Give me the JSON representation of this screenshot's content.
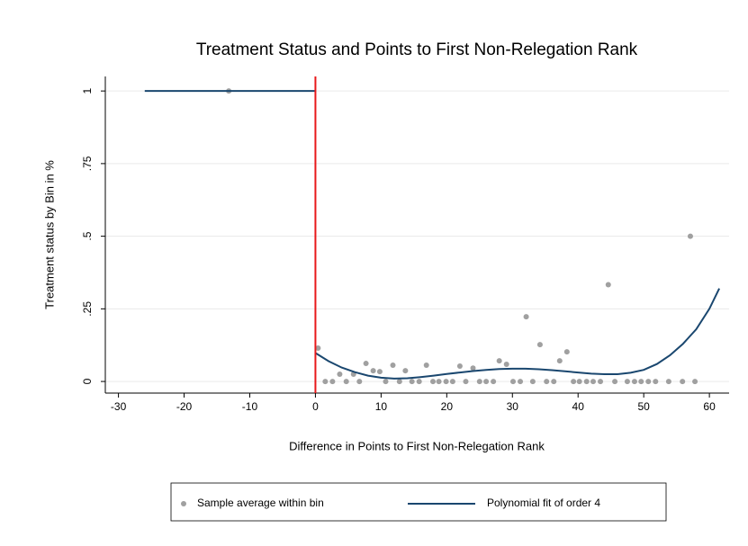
{
  "chart_data": {
    "type": "scatter-fit",
    "title": "Treatment Status and Points to First Non-Relegation Rank",
    "x_label": "Difference in Points to First Non-Relegation Rank",
    "y_label": "Treatment status by Bin in %",
    "xlim": [
      -32,
      63
    ],
    "xticks": [
      -30,
      -20,
      -10,
      0,
      10,
      20,
      30,
      40,
      50,
      60
    ],
    "ylim": [
      -0.04,
      1.05
    ],
    "yticks": [
      0,
      {
        "value": 0.25,
        "label": ".25"
      },
      {
        "value": 0.5,
        "label": ".5"
      },
      {
        "value": 0.75,
        "label": ".75"
      },
      1
    ],
    "grid": true,
    "vline": 0,
    "vline_color": "#e8181a",
    "series": [
      {
        "name": "Sample average within bin",
        "kind": "scatter",
        "color": "#a0a0a0",
        "x": [
          -13.2,
          0.4,
          1.5,
          2.6,
          3.7,
          4.7,
          5.8,
          6.7,
          7.7,
          8.8,
          9.8,
          10.7,
          11.8,
          12.8,
          13.7,
          14.7,
          15.8,
          16.9,
          17.9,
          18.8,
          19.9,
          20.9,
          22.0,
          22.9,
          24.0,
          25.0,
          26.0,
          27.1,
          28.0,
          29.1,
          30.1,
          31.2,
          32.1,
          33.1,
          34.2,
          35.2,
          36.3,
          37.2,
          38.3,
          39.3,
          40.2,
          41.3,
          42.3,
          43.4,
          44.6,
          45.6,
          47.5,
          48.6,
          49.6,
          50.7,
          51.8,
          53.8,
          55.9,
          57.8,
          57.1
        ],
        "values": [
          1,
          0.115,
          0,
          0,
          0.025,
          0,
          0.025,
          0,
          0.062,
          0.037,
          0.034,
          0,
          0.056,
          0,
          0.037,
          0,
          0,
          0.056,
          0,
          0,
          0,
          0,
          0.053,
          0,
          0.046,
          0,
          0,
          0,
          0.071,
          0.059,
          0,
          0,
          0.223,
          0,
          0.127,
          0,
          0,
          0.071,
          0.102,
          0,
          0,
          0,
          0,
          0,
          0.333,
          0,
          0,
          0,
          0,
          0,
          0,
          0,
          0,
          0,
          0.5
        ]
      },
      {
        "name": "Polynomial fit of order 4",
        "kind": "line",
        "color": "#1a476f",
        "x": [
          -26,
          0,
          null,
          0,
          2,
          4,
          6,
          8,
          10,
          12,
          14,
          16,
          18,
          20,
          22,
          24,
          26,
          28,
          30,
          32,
          34,
          36,
          38,
          40,
          42,
          44,
          46,
          48,
          50,
          52,
          54,
          56,
          58,
          60,
          61.5
        ],
        "values": [
          1,
          1,
          null,
          0.098,
          0.07,
          0.048,
          0.032,
          0.02,
          0.013,
          0.01,
          0.011,
          0.015,
          0.02,
          0.026,
          0.031,
          0.036,
          0.04,
          0.043,
          0.044,
          0.044,
          0.042,
          0.039,
          0.035,
          0.031,
          0.027,
          0.025,
          0.025,
          0.03,
          0.04,
          0.06,
          0.09,
          0.13,
          0.18,
          0.25,
          0.32
        ]
      }
    ]
  }
}
